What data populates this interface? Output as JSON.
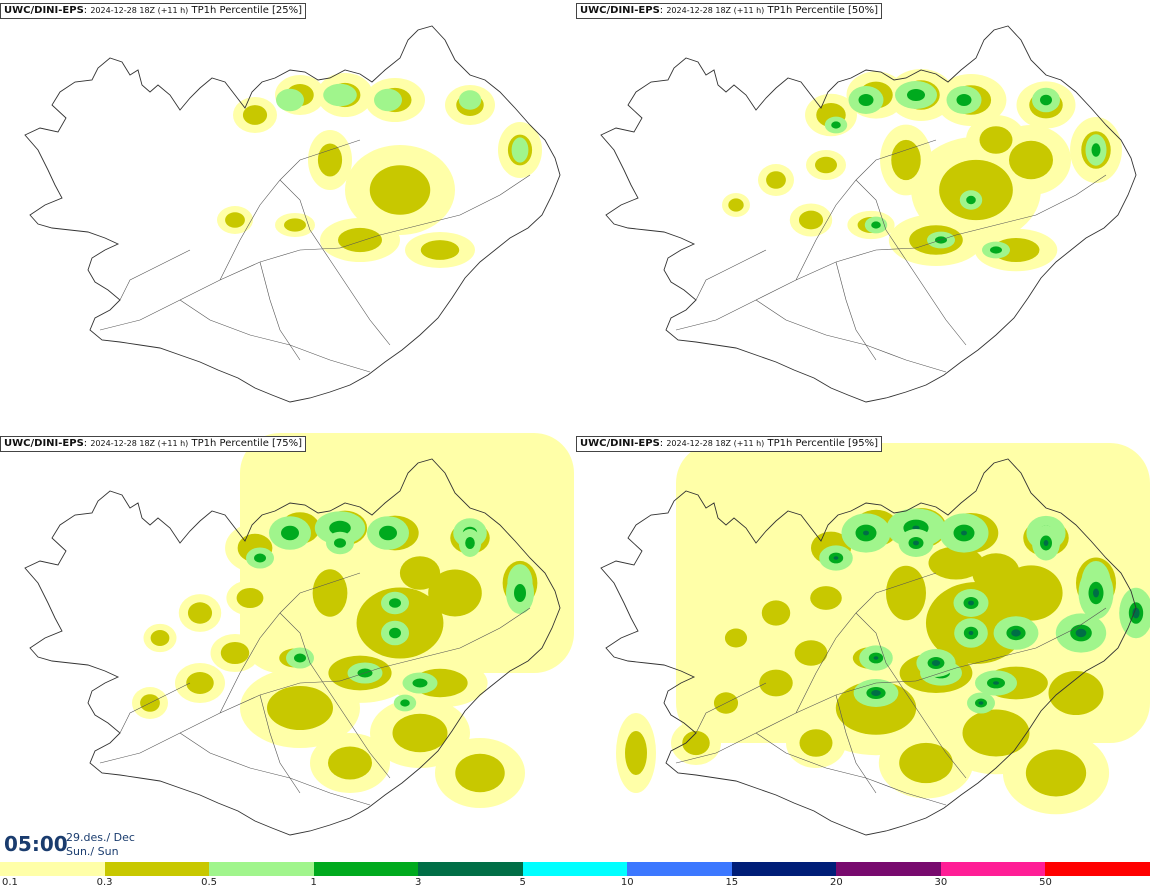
{
  "panels": [
    {
      "model": "UWC/DINI-EPS",
      "run": "2024-12-28 18Z (+11 h)",
      "title": "TP1h Percentile [25%]"
    },
    {
      "model": "UWC/DINI-EPS",
      "run": "2024-12-28 18Z (+11 h)",
      "title": "TP1h Percentile [50%]"
    },
    {
      "model": "UWC/DINI-EPS",
      "run": "2024-12-28 18Z (+11 h)",
      "title": "TP1h Percentile [75%]"
    },
    {
      "model": "UWC/DINI-EPS",
      "run": "2024-12-28 18Z (+11 h)",
      "title": "TP1h Percentile [95%]"
    }
  ],
  "timestamp": {
    "time": "05:00",
    "date": "29.des./ Dec",
    "day": "Sun./ Sun"
  },
  "colorbar": {
    "colors": [
      "#ffffa8",
      "#c8c800",
      "#a0f58c",
      "#00aa1e",
      "#006e46",
      "#00ffff",
      "#3c78ff",
      "#001e78",
      "#780a6e",
      "#ff1e96",
      "#ff0000"
    ],
    "labels": [
      "0.1",
      "0.3",
      "0.5",
      "1",
      "3",
      "5",
      "10",
      "15",
      "20",
      "30",
      "50"
    ]
  },
  "separator": "/"
}
